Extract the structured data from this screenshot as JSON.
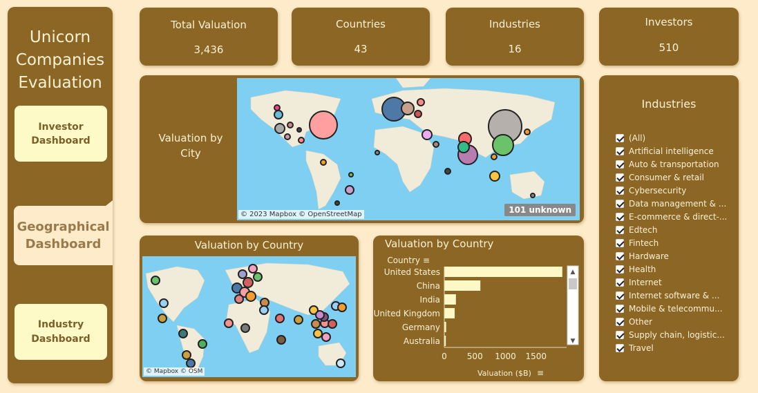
{
  "app": {
    "title": "Unicorn\nCompanies\nEvaluation"
  },
  "nav": {
    "investor": "Investor\nDashboard",
    "geographical": "Geographical\nDashboard",
    "industry": "Industry\nDashboard",
    "active": "geographical"
  },
  "kpis": [
    {
      "label": "Total Valuation",
      "value": "3,436"
    },
    {
      "label": "Countries",
      "value": "43"
    },
    {
      "label": "Industries",
      "value": "16"
    },
    {
      "label": "Investors",
      "value": "510"
    }
  ],
  "city_map": {
    "title": "Valuation by\nCity",
    "attribution": "© 2023 Mapbox © OpenStreetMap",
    "unknown_badge": "101 unknown"
  },
  "country_map": {
    "title": "Valuation by Country",
    "attribution": "© Mapbox © OSM"
  },
  "bar_chart": {
    "title": "Valuation  by Country",
    "category_header": "Country"
  },
  "industries": {
    "title": "Industries",
    "items": [
      "(All)",
      "Artificial intelligence",
      "Auto & transportation",
      "Consumer & retail",
      "Cybersecurity",
      "Data management & ...",
      "E-commerce & direct-...",
      "Edtech",
      "Fintech",
      "Hardware",
      "Health",
      "Internet",
      "Internet software & ...",
      "Mobile & telecommu...",
      "Other",
      "Supply chain, logistic...",
      "Travel"
    ]
  },
  "colors": {
    "panel": "#8b6624",
    "background": "#fdebc9",
    "bar": "#fdf9c6",
    "ocean": "#7fcff2"
  },
  "chart_data": {
    "type": "bar",
    "orientation": "horizontal",
    "categories": [
      "United States",
      "China",
      "India",
      "United Kingdom",
      "Germany",
      "Australia"
    ],
    "values": [
      1930,
      590,
      190,
      170,
      30,
      25
    ],
    "xlabel": "Valuation ($B)",
    "ylabel": "Country",
    "xticks": [
      "0",
      "500",
      "1000",
      "1500"
    ],
    "xlim": [
      0,
      2000
    ],
    "grid": false
  }
}
